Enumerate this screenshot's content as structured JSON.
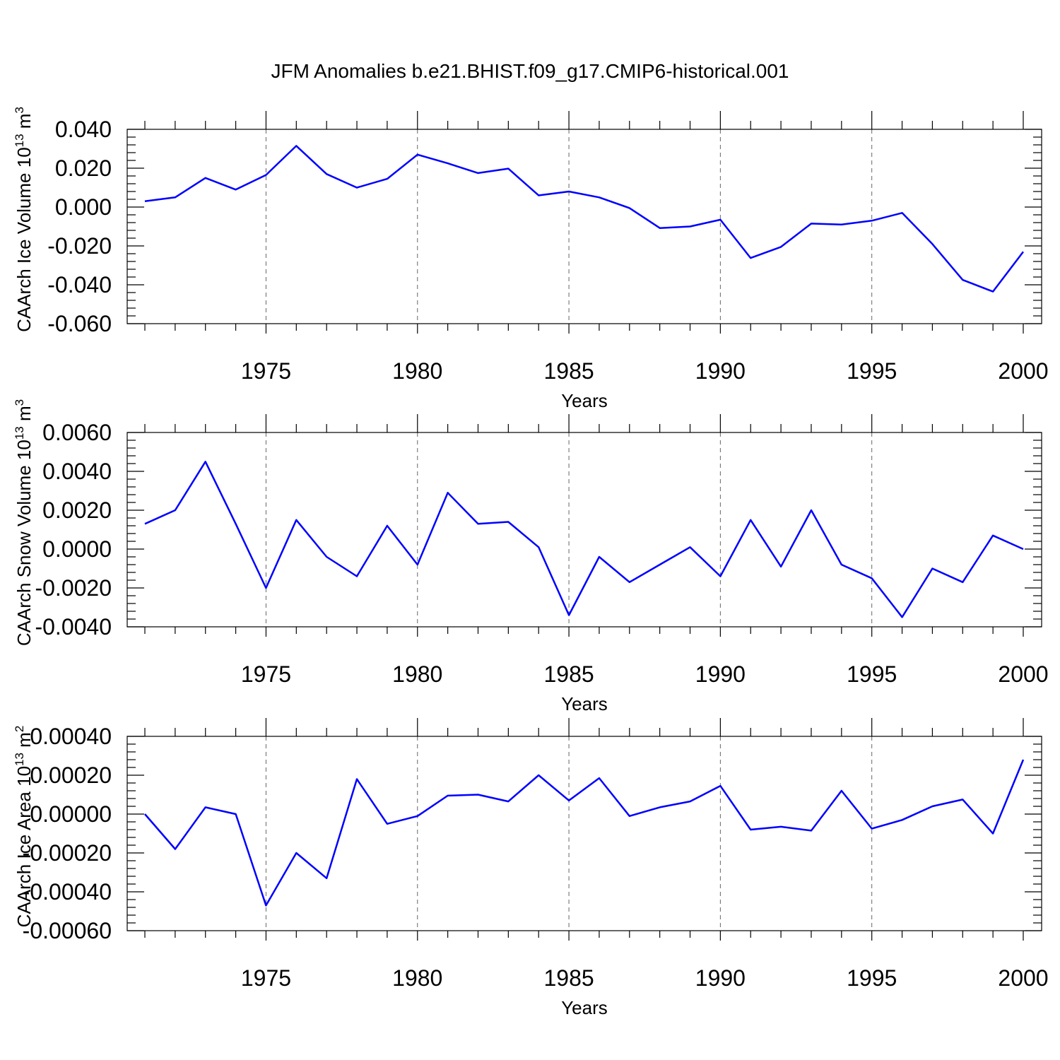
{
  "title": "JFM Anomalies b.e21.BHIST.f09_g17.CMIP6-historical.001",
  "colors": {
    "line": "#0000ff",
    "axis": "#000000",
    "grid": "#666666"
  },
  "chart_data": [
    {
      "type": "line",
      "xlabel": "Years",
      "ylabel": "CAArch Ice Volume 10",
      "ylabel_exp": "13",
      "ylabel_unit": " m",
      "ylabel_unit_exp": "3",
      "xlim": [
        1971,
        2000
      ],
      "ylim": [
        -0.06,
        0.04
      ],
      "xticks": [
        1975,
        1980,
        1985,
        1990,
        1995,
        2000
      ],
      "yticks": [
        "0.040",
        "0.020",
        "0.000",
        "-0.020",
        "-0.040",
        "-0.060"
      ],
      "grid": "vertical dashed at major x ticks",
      "x": [
        1971,
        1972,
        1973,
        1974,
        1975,
        1976,
        1977,
        1978,
        1979,
        1980,
        1981,
        1982,
        1983,
        1984,
        1985,
        1986,
        1987,
        1988,
        1989,
        1990,
        1991,
        1992,
        1993,
        1994,
        1995,
        1996,
        1997,
        1998,
        1999,
        2000
      ],
      "values": [
        0.003,
        0.005,
        0.015,
        0.009,
        0.0165,
        0.0315,
        0.017,
        0.01,
        0.0145,
        0.027,
        0.0225,
        0.0175,
        0.0198,
        0.006,
        0.008,
        0.005,
        -0.0005,
        -0.0108,
        -0.01,
        -0.0065,
        -0.0262,
        -0.0205,
        -0.0085,
        -0.009,
        -0.007,
        -0.003,
        -0.019,
        -0.0375,
        -0.0435,
        -0.023
      ]
    },
    {
      "type": "line",
      "xlabel": "Years",
      "ylabel": "CAArch Snow Volume 10",
      "ylabel_exp": "13",
      "ylabel_unit": " m",
      "ylabel_unit_exp": "3",
      "xlim": [
        1971,
        2000
      ],
      "ylim": [
        -0.004,
        0.006
      ],
      "xticks": [
        1975,
        1980,
        1985,
        1990,
        1995,
        2000
      ],
      "yticks": [
        "0.0060",
        "0.0040",
        "0.0020",
        "0.0000",
        "-0.0020",
        "-0.0040"
      ],
      "grid": "vertical dashed at major x ticks",
      "x": [
        1971,
        1972,
        1973,
        1974,
        1975,
        1976,
        1977,
        1978,
        1979,
        1980,
        1981,
        1982,
        1983,
        1984,
        1985,
        1986,
        1987,
        1988,
        1989,
        1990,
        1991,
        1992,
        1993,
        1994,
        1995,
        1996,
        1997,
        1998,
        1999,
        2000
      ],
      "values": [
        0.0013,
        0.002,
        0.0045,
        0.0013,
        -0.002,
        0.0015,
        -0.0004,
        -0.0014,
        0.0012,
        -0.0008,
        0.0029,
        0.0013,
        0.0014,
        0.0001,
        -0.0034,
        -0.0004,
        -0.0017,
        -0.0008,
        0.0001,
        -0.0014,
        0.0015,
        -0.0009,
        0.002,
        -0.0008,
        -0.0015,
        -0.0035,
        -0.001,
        -0.0017,
        0.0007,
        0.0
      ]
    },
    {
      "type": "line",
      "xlabel": "Years",
      "ylabel": "CAArch Ice Area 10",
      "ylabel_exp": "13",
      "ylabel_unit": " m",
      "ylabel_unit_exp": "2",
      "xlim": [
        1971,
        2000
      ],
      "ylim": [
        -0.0006,
        0.0004
      ],
      "xticks": [
        1975,
        1980,
        1985,
        1990,
        1995,
        2000
      ],
      "yticks": [
        "0.00040",
        "0.00020",
        "0.00000",
        "-0.00020",
        "-0.00040",
        "-0.00060"
      ],
      "grid": "vertical dashed at major x ticks",
      "x": [
        1971,
        1972,
        1973,
        1974,
        1975,
        1976,
        1977,
        1978,
        1979,
        1980,
        1981,
        1982,
        1983,
        1984,
        1985,
        1986,
        1987,
        1988,
        1989,
        1990,
        1991,
        1992,
        1993,
        1994,
        1995,
        1996,
        1997,
        1998,
        1999,
        2000
      ],
      "values": [
        0.0,
        -0.00018,
        3.5e-05,
        0.0,
        -0.00047,
        -0.0002,
        -0.00033,
        0.00018,
        -5e-05,
        -1e-05,
        9.5e-05,
        0.0001,
        6.5e-05,
        0.0002,
        7e-05,
        0.000185,
        -1e-05,
        3.5e-05,
        6.5e-05,
        0.000145,
        -8e-05,
        -6.5e-05,
        -8.5e-05,
        0.00012,
        -7.5e-05,
        -3e-05,
        4e-05,
        7.5e-05,
        -0.0001,
        0.00028
      ]
    }
  ]
}
